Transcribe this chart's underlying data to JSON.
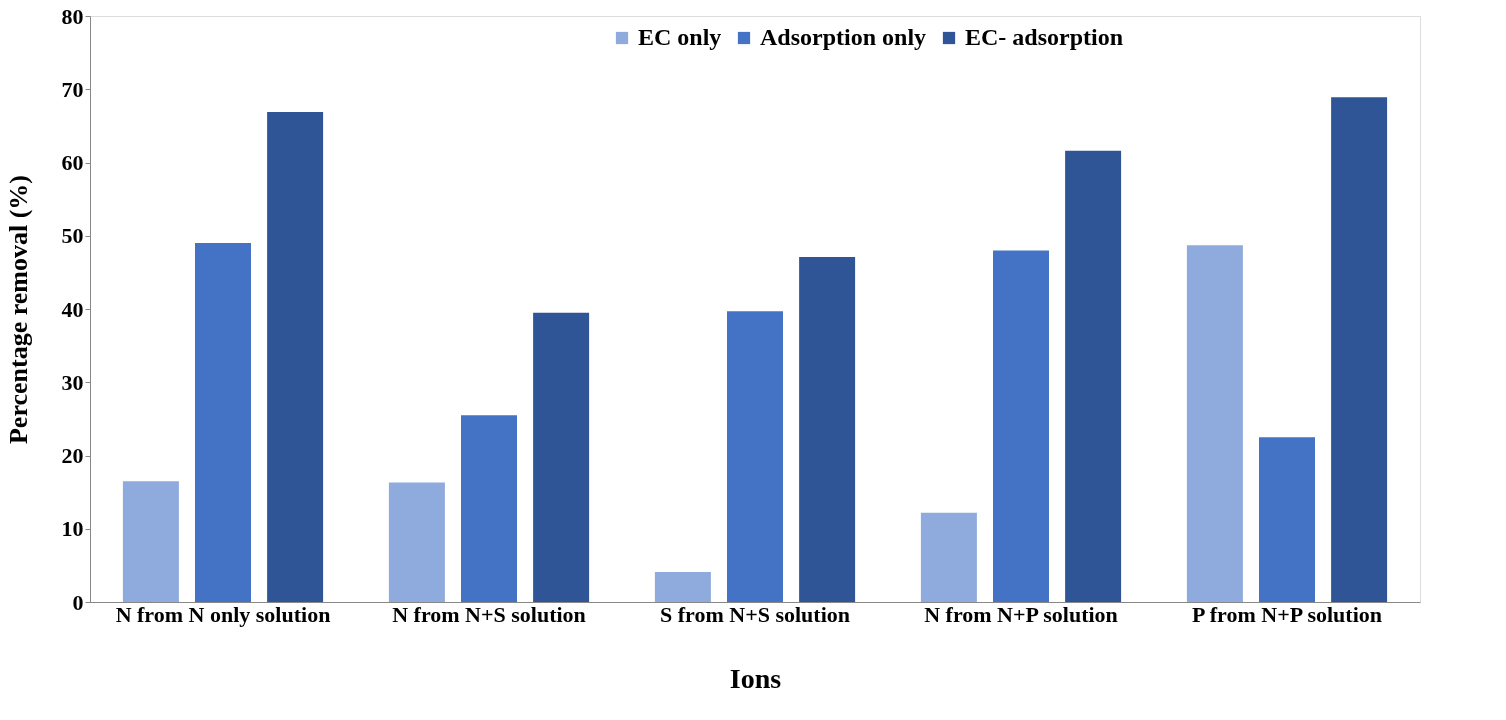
{
  "chart_data": {
    "type": "bar",
    "xlabel": "Ions",
    "ylabel": "Percentage removal (%)",
    "categories": [
      "N from N only solution",
      "N from N+S solution",
      "S from N+S solution",
      "N from N+P solution",
      "P from N+P solution"
    ],
    "series": [
      {
        "name": "EC only",
        "color": "#8faadc",
        "values": [
          16.5,
          16.3,
          4.1,
          12.2,
          48.7
        ]
      },
      {
        "name": "Adsorption only",
        "color": "#4472c4",
        "values": [
          49,
          25.5,
          39.7,
          48,
          22.5
        ]
      },
      {
        "name": "EC- adsorption",
        "color": "#2f5597",
        "values": [
          66.9,
          39.5,
          47.1,
          61.6,
          68.9
        ]
      }
    ],
    "ylim": [
      0,
      80
    ],
    "yticks": [
      0,
      10,
      20,
      30,
      40,
      50,
      60,
      70,
      80
    ],
    "grid": false,
    "legend": "top"
  }
}
